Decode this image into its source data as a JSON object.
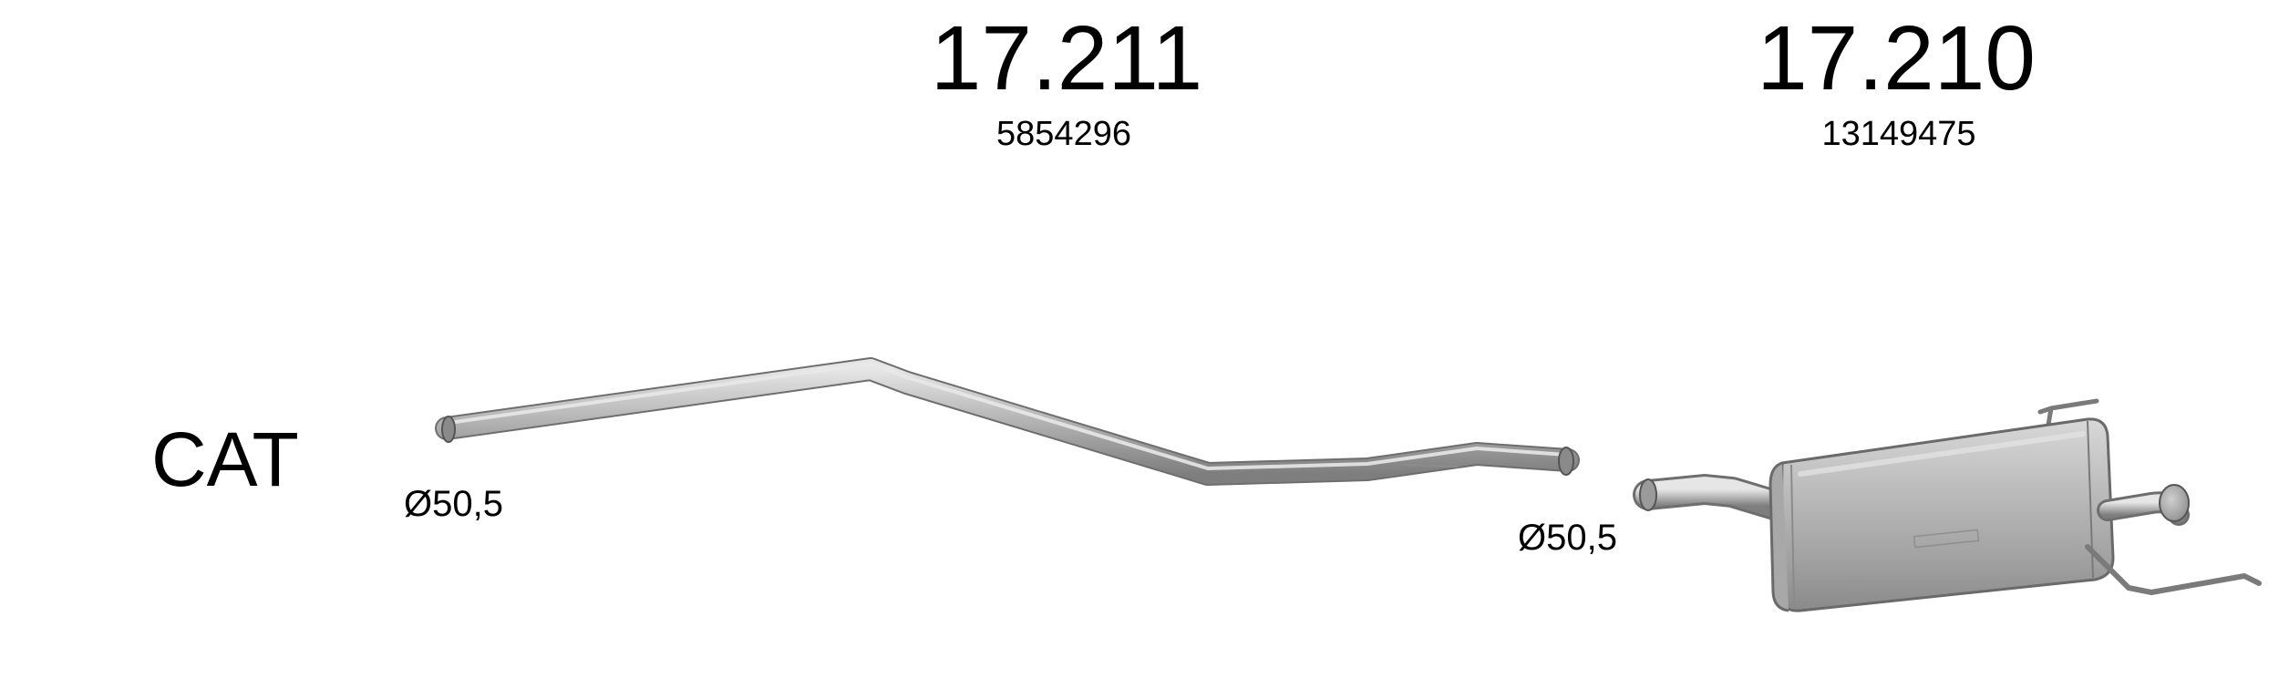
{
  "cat_label": "CAT",
  "parts": [
    {
      "part_number": "17.211",
      "oem_number": "5854296"
    },
    {
      "part_number": "17.210",
      "oem_number": "13149475"
    }
  ],
  "diameters": [
    "Ø50,5",
    "Ø50,5"
  ],
  "colors": {
    "text": "#000000",
    "metal_dark": "#6e6e6e",
    "metal_mid": "#a5a5a5",
    "metal_light": "#d9d9d9"
  }
}
